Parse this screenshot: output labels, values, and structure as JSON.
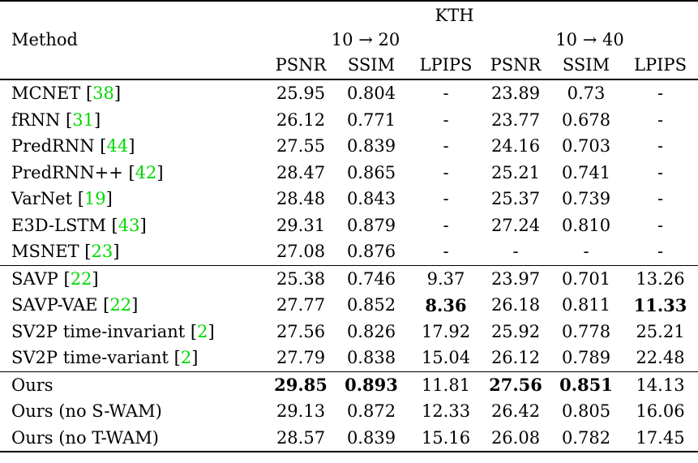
{
  "table": {
    "dataset": "KTH",
    "method_header": "Method",
    "col_groups": [
      {
        "label": "10 → 20"
      },
      {
        "label": "10 → 40"
      }
    ],
    "metric_headers": [
      "PSNR",
      "SSIM",
      "LPIPS",
      "PSNR",
      "SSIM",
      "LPIPS"
    ],
    "sections": [
      {
        "rows": [
          {
            "method": "MCNET",
            "cite": "38",
            "values": [
              "25.95",
              "0.804",
              "-",
              "23.89",
              "0.73",
              "-"
            ],
            "bold": []
          },
          {
            "method": "fRNN",
            "cite": "31",
            "values": [
              "26.12",
              "0.771",
              "-",
              "23.77",
              "0.678",
              "-"
            ],
            "bold": []
          },
          {
            "method": "PredRNN",
            "cite": "44",
            "values": [
              "27.55",
              "0.839",
              "-",
              "24.16",
              "0.703",
              "-"
            ],
            "bold": []
          },
          {
            "method": "PredRNN++",
            "cite": "42",
            "values": [
              "28.47",
              "0.865",
              "-",
              "25.21",
              "0.741",
              "-"
            ],
            "bold": []
          },
          {
            "method": "VarNet",
            "cite": "19",
            "values": [
              "28.48",
              "0.843",
              "-",
              "25.37",
              "0.739",
              "-"
            ],
            "bold": []
          },
          {
            "method": "E3D-LSTM",
            "cite": "43",
            "values": [
              "29.31",
              "0.879",
              "-",
              "27.24",
              "0.810",
              "-"
            ],
            "bold": []
          },
          {
            "method": "MSNET",
            "cite": "23",
            "values": [
              "27.08",
              "0.876",
              "-",
              "-",
              "-",
              "-"
            ],
            "bold": []
          }
        ]
      },
      {
        "rows": [
          {
            "method": "SAVP",
            "cite": "22",
            "values": [
              "25.38",
              "0.746",
              "9.37",
              "23.97",
              "0.701",
              "13.26"
            ],
            "bold": []
          },
          {
            "method": "SAVP-VAE",
            "cite": "22",
            "values": [
              "27.77",
              "0.852",
              "8.36",
              "26.18",
              "0.811",
              "11.33"
            ],
            "bold": [
              2,
              5
            ]
          },
          {
            "method": "SV2P time-invariant",
            "cite": "2",
            "values": [
              "27.56",
              "0.826",
              "17.92",
              "25.92",
              "0.778",
              "25.21"
            ],
            "bold": []
          },
          {
            "method": "SV2P time-variant",
            "cite": "2",
            "values": [
              "27.79",
              "0.838",
              "15.04",
              "26.12",
              "0.789",
              "22.48"
            ],
            "bold": []
          }
        ]
      },
      {
        "rows": [
          {
            "method": "Ours",
            "cite": null,
            "values": [
              "29.85",
              "0.893",
              "11.81",
              "27.56",
              "0.851",
              "14.13"
            ],
            "bold": [
              0,
              1,
              3,
              4
            ]
          },
          {
            "method": "Ours (no S-WAM)",
            "cite": null,
            "values": [
              "29.13",
              "0.872",
              "12.33",
              "26.42",
              "0.805",
              "16.06"
            ],
            "bold": []
          },
          {
            "method": "Ours (no T-WAM)",
            "cite": null,
            "values": [
              "28.57",
              "0.839",
              "15.16",
              "26.08",
              "0.782",
              "17.45"
            ],
            "bold": []
          }
        ]
      }
    ]
  },
  "colors": {
    "text": "#000000",
    "rule": "#000000",
    "citation": "#00d900"
  }
}
